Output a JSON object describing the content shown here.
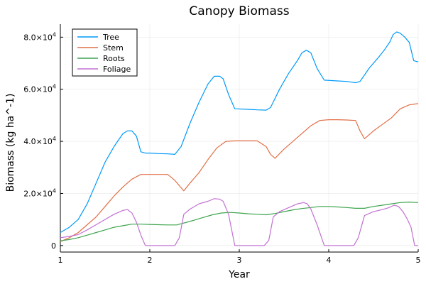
{
  "chart_data": {
    "type": "line",
    "title": "Canopy Biomass",
    "xlabel": "Year",
    "ylabel": "Biomass (kg ha^-1)",
    "xlim": [
      1,
      5
    ],
    "ylim": [
      -2500,
      85000
    ],
    "xticks": [
      1,
      2,
      3,
      4,
      5
    ],
    "xtick_labels": [
      "1",
      "2",
      "3",
      "4",
      "5"
    ],
    "yticks": [
      0,
      20000,
      40000,
      60000,
      80000
    ],
    "ytick_labels": [
      {
        "mantissa": "0",
        "exp": ""
      },
      {
        "mantissa": "2.0×10",
        "exp": "4"
      },
      {
        "mantissa": "4.0×10",
        "exp": "4"
      },
      {
        "mantissa": "6.0×10",
        "exp": "4"
      },
      {
        "mantissa": "8.0×10",
        "exp": "4"
      }
    ],
    "grid": true,
    "legend": "top-left",
    "series": [
      {
        "name": "Tree",
        "color": "#009AFA",
        "x": [
          1.0,
          1.1,
          1.2,
          1.3,
          1.4,
          1.5,
          1.6,
          1.7,
          1.75,
          1.8,
          1.85,
          1.9,
          1.95,
          2.0,
          2.1,
          2.2,
          2.28,
          2.35,
          2.45,
          2.55,
          2.65,
          2.72,
          2.78,
          2.82,
          2.88,
          2.95,
          3.1,
          3.2,
          3.3,
          3.35,
          3.45,
          3.55,
          3.65,
          3.7,
          3.75,
          3.8,
          3.87,
          3.95,
          4.1,
          4.2,
          4.3,
          4.35,
          4.45,
          4.55,
          4.62,
          4.68,
          4.72,
          4.76,
          4.8,
          4.85,
          4.9,
          4.95,
          5.0
        ],
        "y": [
          5000,
          7000,
          10000,
          16000,
          24000,
          32000,
          38000,
          43000,
          44000,
          44000,
          42000,
          36000,
          35500,
          35500,
          35300,
          35200,
          35000,
          38000,
          47000,
          55000,
          62000,
          65000,
          65000,
          64000,
          58000,
          52500,
          52300,
          52100,
          52000,
          53000,
          60000,
          66000,
          71000,
          74000,
          75000,
          74000,
          68000,
          63500,
          63200,
          63000,
          62500,
          63000,
          68000,
          72000,
          75000,
          78000,
          81000,
          82000,
          81500,
          80000,
          78000,
          71000,
          70500
        ]
      },
      {
        "name": "Stem",
        "color": "#E26F46",
        "x": [
          1.0,
          1.1,
          1.2,
          1.3,
          1.4,
          1.5,
          1.6,
          1.7,
          1.8,
          1.9,
          2.0,
          2.1,
          2.2,
          2.28,
          2.33,
          2.38,
          2.45,
          2.55,
          2.65,
          2.75,
          2.85,
          2.95,
          3.1,
          3.2,
          3.3,
          3.35,
          3.4,
          3.5,
          3.6,
          3.7,
          3.8,
          3.9,
          4.0,
          4.1,
          4.2,
          4.3,
          4.35,
          4.4,
          4.5,
          4.6,
          4.7,
          4.8,
          4.9,
          5.0
        ],
        "y": [
          1500,
          3000,
          5000,
          8000,
          11000,
          15000,
          19000,
          22500,
          25500,
          27300,
          27300,
          27300,
          27300,
          25000,
          23000,
          21000,
          24000,
          28000,
          33000,
          37500,
          40000,
          40200,
          40200,
          40200,
          38000,
          35000,
          33500,
          37000,
          40000,
          43000,
          46000,
          48000,
          48300,
          48300,
          48200,
          48000,
          44000,
          41000,
          44000,
          46500,
          49000,
          52500,
          54000,
          54500
        ]
      },
      {
        "name": "Roots",
        "color": "#3EA44E",
        "x": [
          1.0,
          1.1,
          1.2,
          1.3,
          1.4,
          1.5,
          1.6,
          1.7,
          1.8,
          1.9,
          2.0,
          2.1,
          2.2,
          2.3,
          2.4,
          2.5,
          2.6,
          2.7,
          2.8,
          2.9,
          3.0,
          3.1,
          3.2,
          3.3,
          3.4,
          3.5,
          3.6,
          3.7,
          3.8,
          3.9,
          4.0,
          4.1,
          4.2,
          4.3,
          4.4,
          4.5,
          4.6,
          4.7,
          4.8,
          4.9,
          5.0
        ],
        "y": [
          1800,
          2300,
          3000,
          4000,
          5000,
          6000,
          7000,
          7600,
          8200,
          8200,
          8100,
          8000,
          7900,
          7900,
          8800,
          9800,
          10800,
          11800,
          12500,
          12700,
          12500,
          12200,
          12000,
          11800,
          12300,
          13000,
          13700,
          14200,
          14600,
          15000,
          15000,
          14800,
          14600,
          14300,
          14300,
          15000,
          15500,
          16000,
          16500,
          16700,
          16500
        ]
      },
      {
        "name": "Foliage",
        "color": "#C271D2",
        "x": [
          1.0,
          1.1,
          1.2,
          1.3,
          1.4,
          1.5,
          1.6,
          1.7,
          1.75,
          1.8,
          1.85,
          1.9,
          1.95,
          2.1,
          2.2,
          2.28,
          2.33,
          2.38,
          2.45,
          2.55,
          2.65,
          2.72,
          2.78,
          2.82,
          2.88,
          2.95,
          3.1,
          3.2,
          3.28,
          3.33,
          3.38,
          3.45,
          3.55,
          3.65,
          3.72,
          3.76,
          3.8,
          3.87,
          3.95,
          4.1,
          4.2,
          4.28,
          4.33,
          4.4,
          4.5,
          4.6,
          4.67,
          4.73,
          4.78,
          4.83,
          4.88,
          4.92,
          4.96,
          5.0
        ],
        "y": [
          3000,
          3500,
          4200,
          6000,
          8000,
          10000,
          12000,
          13500,
          13800,
          12500,
          9000,
          4000,
          0,
          0,
          0,
          0,
          3000,
          12000,
          14000,
          16000,
          17000,
          18000,
          17800,
          17000,
          12000,
          0,
          0,
          0,
          0,
          2000,
          11000,
          13000,
          14500,
          16000,
          16500,
          16000,
          14000,
          8000,
          0,
          0,
          0,
          0,
          3000,
          11500,
          13000,
          13800,
          14500,
          15500,
          15000,
          13000,
          10000,
          7000,
          0,
          0
        ]
      }
    ]
  }
}
